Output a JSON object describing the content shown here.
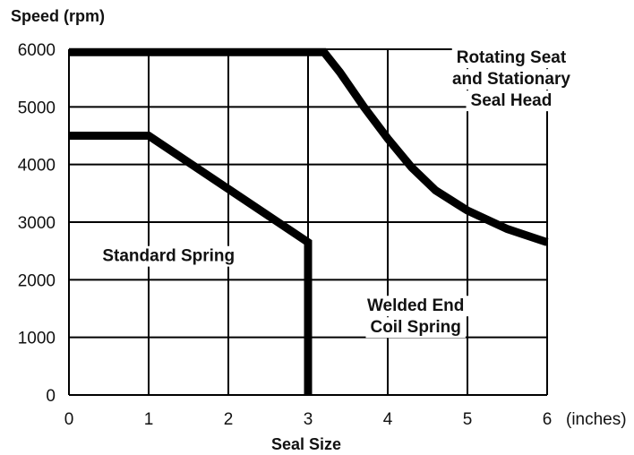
{
  "chart_data": {
    "type": "line",
    "ylabel": "Speed (rpm)",
    "xlabel": "Seal Size",
    "x_unit": "(inches)",
    "xlim": [
      0,
      6
    ],
    "ylim": [
      0,
      6000
    ],
    "x_ticks": [
      0,
      1,
      2,
      3,
      4,
      5,
      6
    ],
    "y_ticks": [
      0,
      1000,
      2000,
      3000,
      4000,
      5000,
      6000
    ],
    "grid": true,
    "series": [
      {
        "points": [
          [
            0,
            4500
          ],
          [
            1,
            4500
          ],
          [
            3,
            2650
          ],
          [
            3,
            0
          ]
        ]
      },
      {
        "points": [
          [
            0,
            5950
          ],
          [
            3.2,
            5950
          ],
          [
            3.4,
            5600
          ],
          [
            3.7,
            5000
          ],
          [
            4.0,
            4450
          ],
          [
            4.3,
            3950
          ],
          [
            4.6,
            3550
          ],
          [
            5.0,
            3200
          ],
          [
            5.5,
            2880
          ],
          [
            6.0,
            2650
          ]
        ]
      }
    ],
    "annotations": [
      {
        "lines": [
          "Standard Spring"
        ],
        "x": 1.25,
        "y": 2430
      },
      {
        "lines": [
          "Welded End",
          "Coil Spring"
        ],
        "x": 4.35,
        "y": 1380
      },
      {
        "lines": [
          "Rotating Seat",
          "and Stationary",
          "Seal Head"
        ],
        "x": 5.55,
        "y": 5500
      }
    ]
  }
}
